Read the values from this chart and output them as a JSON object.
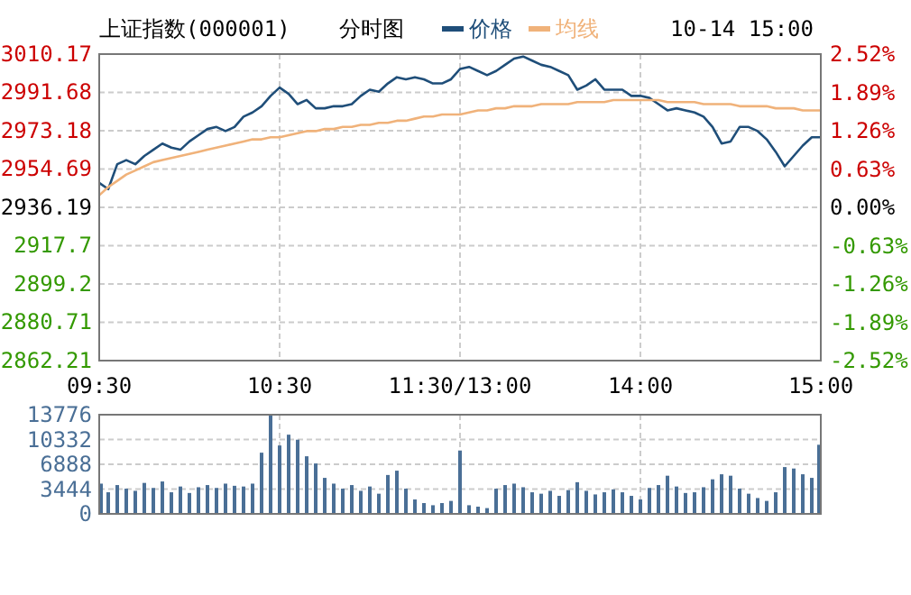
{
  "chart_data": [
    {
      "type": "line",
      "title": "上证指数(000001)",
      "subtitle": "分时图",
      "annotations": [
        "10-14 15:00"
      ],
      "legend": "top",
      "grid": true,
      "categories": [
        "09:30",
        null,
        null,
        null,
        null,
        null,
        null,
        null,
        null,
        null,
        null,
        null,
        null,
        null,
        null,
        null,
        null,
        null,
        null,
        null,
        "10:30",
        null,
        null,
        null,
        null,
        null,
        null,
        null,
        null,
        null,
        null,
        null,
        null,
        null,
        null,
        null,
        null,
        null,
        null,
        null,
        "11:30/13:00",
        null,
        null,
        null,
        null,
        null,
        null,
        null,
        null,
        null,
        null,
        null,
        null,
        null,
        null,
        null,
        null,
        null,
        null,
        null,
        "14:00",
        null,
        null,
        null,
        null,
        null,
        null,
        null,
        null,
        null,
        null,
        null,
        null,
        null,
        null,
        null,
        null,
        null,
        null,
        null,
        "15:00"
      ],
      "ylim": [
        2862.21,
        3010.17
      ],
      "yticks": [
        3010.17,
        2991.68,
        2973.18,
        2954.69,
        2936.19,
        2917.7,
        2899.2,
        2880.71,
        2862.21
      ],
      "y2lim": [
        -2.52,
        2.52
      ],
      "y2ticks": [
        {
          "value": 2.52,
          "label": "2.52%"
        },
        {
          "value": 1.89,
          "label": "1.89%"
        },
        {
          "value": 1.26,
          "label": "1.26%"
        },
        {
          "value": 0.63,
          "label": "0.63%"
        },
        {
          "value": 0,
          "label": "0.00%"
        },
        {
          "value": -0.63,
          "label": "-0.63%"
        },
        {
          "value": -1.26,
          "label": "-1.26%"
        },
        {
          "value": -1.89,
          "label": "-1.89%"
        },
        {
          "value": -2.52,
          "label": "-2.52%"
        }
      ],
      "series": [
        {
          "name": "价格",
          "color": "#1f4e79",
          "values": [
            2948,
            2945,
            2957,
            2959,
            2957,
            2961,
            2964,
            2967,
            2965,
            2964,
            2968,
            2971,
            2974,
            2975,
            2973,
            2975,
            2980,
            2982,
            2985,
            2990,
            2994,
            2991,
            2986,
            2988,
            2984,
            2984,
            2985,
            2985,
            2986,
            2990,
            2993,
            2992,
            2996,
            2999,
            2998,
            2999,
            2998,
            2996,
            2996,
            2998,
            3003,
            3004,
            3002,
            3000,
            3002,
            3005,
            3008,
            3009,
            3007,
            3005,
            3004,
            3002,
            3000,
            2993,
            2995,
            2998,
            2993,
            2993,
            2993,
            2990,
            2990,
            2989,
            2986,
            2983,
            2984,
            2983,
            2982,
            2980,
            2975,
            2967,
            2968,
            2975,
            2975,
            2973,
            2969,
            2963,
            2956,
            2961,
            2966,
            2970,
            2970
          ]
        },
        {
          "name": "均线",
          "color": "#f0b27a",
          "values": [
            2942,
            2946,
            2949,
            2952,
            2954,
            2956,
            2958,
            2959,
            2960,
            2961,
            2962,
            2963,
            2964,
            2965,
            2966,
            2967,
            2968,
            2969,
            2969,
            2970,
            2970,
            2971,
            2972,
            2973,
            2973,
            2974,
            2974,
            2975,
            2975,
            2976,
            2976,
            2977,
            2977,
            2978,
            2978,
            2979,
            2980,
            2980,
            2981,
            2981,
            2981,
            2982,
            2983,
            2983,
            2984,
            2984,
            2985,
            2985,
            2985,
            2986,
            2986,
            2986,
            2986,
            2987,
            2987,
            2987,
            2987,
            2988,
            2988,
            2988,
            2988,
            2988,
            2988,
            2987,
            2987,
            2987,
            2987,
            2986,
            2986,
            2986,
            2986,
            2985,
            2985,
            2985,
            2985,
            2984,
            2984,
            2984,
            2983,
            2983,
            2983
          ]
        }
      ]
    },
    {
      "type": "bar",
      "tick_labels": "y",
      "grid": true,
      "categories": [
        null,
        null,
        null,
        null,
        null,
        null,
        null,
        null,
        null,
        null,
        null,
        null,
        null,
        null,
        null,
        null,
        null,
        null,
        null,
        null,
        null,
        null,
        null,
        null,
        null,
        null,
        null,
        null,
        null,
        null,
        null,
        null,
        null,
        null,
        null,
        null,
        null,
        null,
        null,
        null,
        null,
        null,
        null,
        null,
        null,
        null,
        null,
        null,
        null,
        null,
        null,
        null,
        null,
        null,
        null,
        null,
        null,
        null,
        null,
        null,
        null,
        null,
        null,
        null,
        null,
        null,
        null,
        null,
        null,
        null,
        null,
        null,
        null,
        null,
        null,
        null,
        null,
        null,
        null,
        null,
        null
      ],
      "ylim": [
        0,
        13776
      ],
      "yticks": [
        0,
        3444,
        6888,
        10332,
        13776
      ],
      "series": [
        {
          "color": "#4a6f96",
          "values": [
            4200,
            3000,
            4000,
            3500,
            3200,
            4300,
            3600,
            4500,
            3000,
            3800,
            2900,
            3700,
            4000,
            3600,
            4200,
            3900,
            3800,
            4200,
            8500,
            13700,
            9500,
            11000,
            10300,
            8000,
            7000,
            5000,
            4200,
            3500,
            4000,
            3200,
            3800,
            2800,
            5400,
            6000,
            3500,
            2000,
            1500,
            1200,
            1500,
            1800,
            8800,
            1200,
            1000,
            800,
            3500,
            4000,
            4200,
            3700,
            3000,
            2800,
            3200,
            2500,
            3300,
            4400,
            3200,
            2700,
            3000,
            3400,
            3000,
            2500,
            2000,
            3600,
            4000,
            5300,
            3800,
            2900,
            3000,
            3700,
            4800,
            5500,
            5300,
            3500,
            2800,
            2200,
            1800,
            3000,
            6500,
            6300,
            5500,
            5000,
            9600
          ]
        }
      ]
    }
  ]
}
